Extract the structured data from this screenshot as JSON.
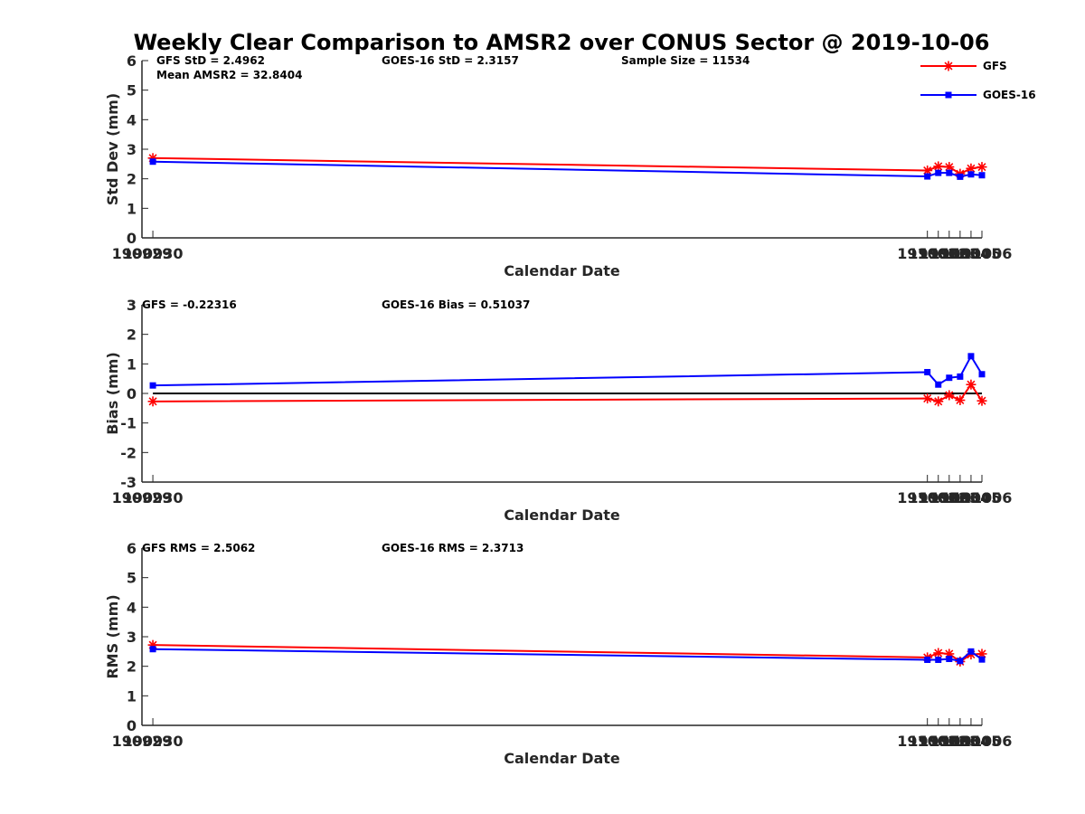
{
  "title": "Weekly Clear Comparison to AMSR2 over CONUS Sector @ 2019-10-06",
  "legend": {
    "placement": "top-right",
    "entries": [
      {
        "label": "GFS",
        "color": "#ff0000",
        "marker": "asterisk"
      },
      {
        "label": "GOES-16",
        "color": "#0000ff",
        "marker": "square"
      }
    ]
  },
  "chart_data": [
    {
      "type": "line",
      "ylabel": "Std Dev (mm)",
      "xlabel": "Calendar Date",
      "ylim": [
        0,
        6
      ],
      "yticks": [
        "0",
        "1",
        "2",
        "3",
        "4",
        "5",
        "6"
      ],
      "xlim": [
        190929,
        191006
      ],
      "xticks": [
        "190929",
        "190930",
        "191001",
        "191002",
        "191003",
        "191004",
        "191005",
        "191006"
      ],
      "annotations": [
        "GFS StD = 2.4962",
        "Mean AMSR2 = 32.8404",
        "GOES-16 StD = 2.3157",
        "Sample Size = 11534"
      ],
      "reference_line": null,
      "series": [
        {
          "name": "GFS",
          "color": "#ff0000",
          "marker": "asterisk",
          "x": [
            "190930",
            "191001",
            "191002",
            "191003",
            "191004",
            "191005",
            "191006"
          ],
          "values": [
            2.7,
            2.28,
            2.42,
            2.4,
            2.17,
            2.35,
            2.4
          ]
        },
        {
          "name": "GOES-16",
          "color": "#0000ff",
          "marker": "square",
          "x": [
            "190930",
            "191001",
            "191002",
            "191003",
            "191004",
            "191005",
            "191006"
          ],
          "values": [
            2.58,
            2.08,
            2.2,
            2.2,
            2.07,
            2.15,
            2.12
          ]
        }
      ]
    },
    {
      "type": "line",
      "ylabel": "Bias (mm)",
      "xlabel": "Calendar Date",
      "ylim": [
        -3,
        3
      ],
      "yticks": [
        "-3",
        "-2",
        "-1",
        "0",
        "1",
        "2",
        "3"
      ],
      "xlim": [
        190929,
        191006
      ],
      "xticks": [
        "190929",
        "190930",
        "191001",
        "191002",
        "191003",
        "191004",
        "191005",
        "191006"
      ],
      "annotations": [
        "GFS = -0.22316",
        "GOES-16 Bias  = 0.51037"
      ],
      "reference_line": 0,
      "series": [
        {
          "name": "GFS",
          "color": "#ff0000",
          "marker": "asterisk",
          "x": [
            "190930",
            "191001",
            "191002",
            "191003",
            "191004",
            "191005",
            "191006"
          ],
          "values": [
            -0.27,
            -0.17,
            -0.27,
            -0.06,
            -0.23,
            0.3,
            -0.25
          ]
        },
        {
          "name": "GOES-16",
          "color": "#0000ff",
          "marker": "square",
          "x": [
            "190930",
            "191001",
            "191002",
            "191003",
            "191004",
            "191005",
            "191006"
          ],
          "values": [
            0.27,
            0.72,
            0.3,
            0.53,
            0.57,
            1.26,
            0.65
          ]
        }
      ]
    },
    {
      "type": "line",
      "ylabel": "RMS (mm)",
      "xlabel": "Calendar Date",
      "ylim": [
        0,
        6
      ],
      "yticks": [
        "0",
        "1",
        "2",
        "3",
        "4",
        "5",
        "6"
      ],
      "xlim": [
        190929,
        191006
      ],
      "xticks": [
        "190929",
        "190930",
        "191001",
        "191002",
        "191003",
        "191004",
        "191005",
        "191006"
      ],
      "annotations": [
        "GFS RMS = 2.5062",
        "GOES-16 RMS = 2.3713"
      ],
      "reference_line": null,
      "series": [
        {
          "name": "GFS",
          "color": "#ff0000",
          "marker": "asterisk",
          "x": [
            "190930",
            "191001",
            "191002",
            "191003",
            "191004",
            "191005",
            "191006"
          ],
          "values": [
            2.72,
            2.3,
            2.45,
            2.42,
            2.16,
            2.4,
            2.42
          ]
        },
        {
          "name": "GOES-16",
          "color": "#0000ff",
          "marker": "square",
          "x": [
            "190930",
            "191001",
            "191002",
            "191003",
            "191004",
            "191005",
            "191006"
          ],
          "values": [
            2.58,
            2.22,
            2.22,
            2.25,
            2.18,
            2.5,
            2.23
          ]
        }
      ]
    }
  ]
}
